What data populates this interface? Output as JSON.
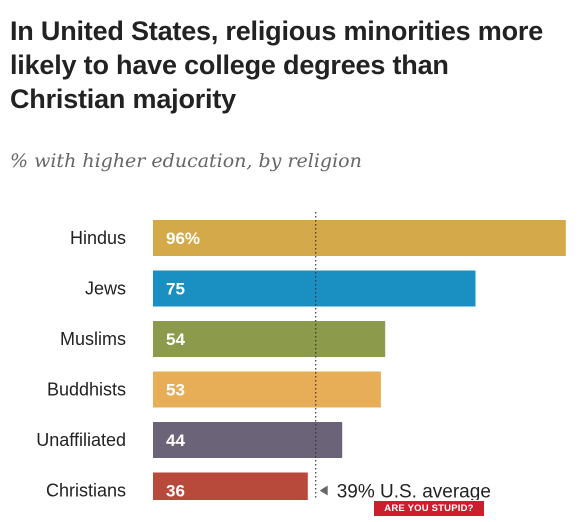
{
  "chart_data": {
    "type": "bar",
    "title": "In United States, religious minorities more likely to have college degrees than Christian majority",
    "subtitle": "% with higher education, by religion",
    "categories": [
      "Hindus",
      "Jews",
      "Muslims",
      "Buddhists",
      "Unaffiliated",
      "Christians"
    ],
    "values": [
      96,
      75,
      54,
      53,
      44,
      36
    ],
    "value_labels": [
      "96%",
      "75",
      "54",
      "53",
      "44",
      "36"
    ],
    "colors": [
      "#d4a94a",
      "#1a8fc2",
      "#8c9a4c",
      "#e8ad57",
      "#6b6478",
      "#b84a3c"
    ],
    "reference_line": {
      "value": 39,
      "label": "39% U.S. average"
    },
    "xlim": [
      0,
      100
    ]
  },
  "watermark": "ARE YOU STUPID?"
}
